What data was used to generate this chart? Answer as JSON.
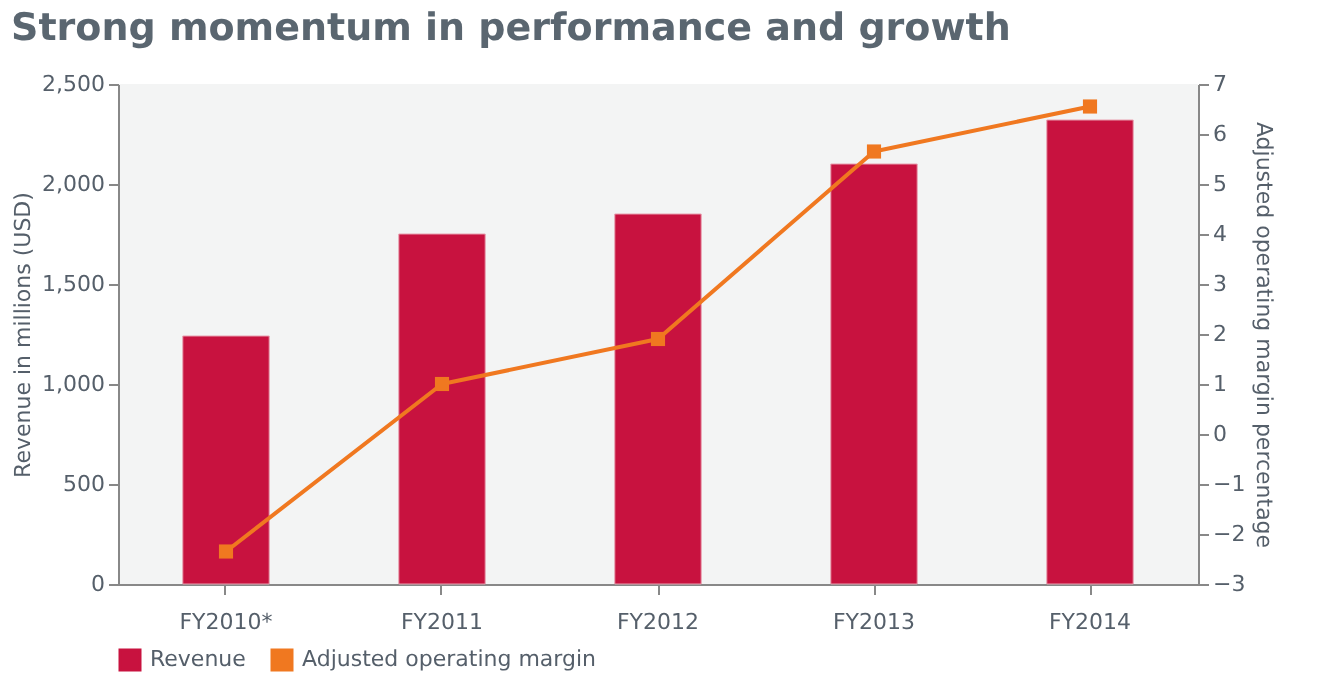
{
  "chart_data": {
    "type": "bar",
    "title": "Strong momentum in performance and growth",
    "categories": [
      "FY2010*",
      "FY2011",
      "FY2012",
      "FY2013",
      "FY2014"
    ],
    "ylabel": "Revenue in millions (USD)",
    "y2label": "Adjusted operating margin percentage",
    "ylim": [
      0,
      2500
    ],
    "yticks": [
      0,
      500,
      {
        "value": 1000,
        "label": "1,000"
      },
      {
        "value": 1500,
        "label": "1,500"
      },
      {
        "value": 2000,
        "label": "2,000"
      },
      {
        "value": 2500,
        "label": "2,500"
      }
    ],
    "y2lim": [
      -3,
      7
    ],
    "y2ticks": [
      -3,
      -2,
      -1,
      0,
      1,
      2,
      3,
      4,
      5,
      6,
      7
    ],
    "series": [
      {
        "name": "Revenue",
        "color": "#c8123f",
        "values": [
          1240,
          1750,
          1850,
          2100,
          2320
        ]
      },
      {
        "name": "Adjusted operating margin",
        "type": "line",
        "axis": "y2",
        "marker": "square",
        "color": "#f07820",
        "values": [
          -2.35,
          1.0,
          1.9,
          5.65,
          6.55
        ]
      }
    ],
    "grid": false,
    "legend": "bottom left"
  }
}
